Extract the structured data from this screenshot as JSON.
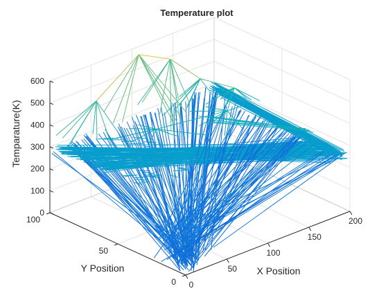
{
  "chart_data": {
    "type": "line3d",
    "title": "Temperature plot",
    "xlabel": "X Position",
    "ylabel": "Y Position",
    "zlabel": "Temparature(K)",
    "xlim": [
      0,
      200
    ],
    "ylim": [
      0,
      100
    ],
    "zlim": [
      0,
      600
    ],
    "xticks": [
      0,
      50,
      100,
      150,
      200
    ],
    "yticks": [
      0,
      50,
      100
    ],
    "zticks": [
      0,
      100,
      200,
      300,
      400,
      500,
      600
    ],
    "grid": true,
    "colormap": "parula",
    "edge_points": [
      {
        "x": 0,
        "y": 0,
        "z": 0
      },
      {
        "x": 0,
        "y": 100,
        "z": 300
      },
      {
        "x": 200,
        "y": 0,
        "z": 250
      },
      {
        "x": 200,
        "y": 100,
        "z": 300
      }
    ],
    "peaks": [
      {
        "x": 40,
        "y": 90,
        "z": 480
      },
      {
        "x": 100,
        "y": 95,
        "z": 590
      },
      {
        "x": 130,
        "y": 90,
        "z": 540
      },
      {
        "x": 150,
        "y": 80,
        "z": 450
      },
      {
        "x": 175,
        "y": 70,
        "z": 400
      },
      {
        "x": 150,
        "y": 60,
        "z": 360
      },
      {
        "x": 80,
        "y": 70,
        "z": 350
      }
    ]
  },
  "colors": {
    "axis": "#262626",
    "grid": "#e3e3e3",
    "low": "#3d4ee0",
    "mid": "#1fb0c0",
    "high": "#f7e01e"
  }
}
